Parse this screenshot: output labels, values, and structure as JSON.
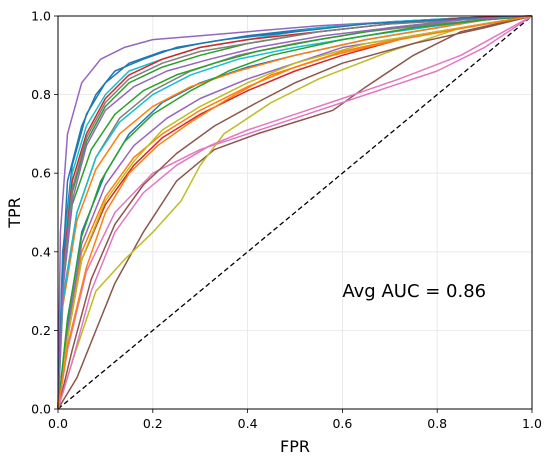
{
  "chart_data": {
    "type": "line",
    "xlabel": "FPR",
    "ylabel": "TPR",
    "xlim": [
      0,
      1
    ],
    "ylim": [
      0,
      1
    ],
    "xticks": [
      "0.0",
      "0.2",
      "0.4",
      "0.6",
      "0.8",
      "1.0"
    ],
    "yticks": [
      "0.0",
      "0.2",
      "0.4",
      "0.6",
      "0.8",
      "1.0"
    ],
    "grid": true,
    "annotation": "Avg AUC = 0.86",
    "diagonal": {
      "x": [
        0,
        1
      ],
      "y": [
        0,
        1
      ],
      "style": "dashed",
      "color": "#000000"
    },
    "series": [
      {
        "color": "#1f77b4",
        "x": [
          0,
          0.01,
          0.03,
          0.06,
          0.1,
          0.15,
          0.22,
          0.3,
          0.4,
          0.55,
          0.7,
          0.85,
          1
        ],
        "y": [
          0,
          0.4,
          0.62,
          0.75,
          0.83,
          0.88,
          0.91,
          0.93,
          0.95,
          0.97,
          0.985,
          0.995,
          1
        ]
      },
      {
        "color": "#ff7f0e",
        "x": [
          0,
          0.02,
          0.05,
          0.1,
          0.16,
          0.22,
          0.3,
          0.4,
          0.5,
          0.6,
          0.75,
          0.9,
          1
        ],
        "y": [
          0,
          0.2,
          0.4,
          0.54,
          0.64,
          0.7,
          0.76,
          0.82,
          0.87,
          0.91,
          0.95,
          0.98,
          1
        ]
      },
      {
        "color": "#2ca02c",
        "x": [
          0,
          0.01,
          0.03,
          0.06,
          0.1,
          0.15,
          0.22,
          0.3,
          0.4,
          0.55,
          0.7,
          0.85,
          1
        ],
        "y": [
          0,
          0.32,
          0.55,
          0.68,
          0.77,
          0.83,
          0.87,
          0.9,
          0.93,
          0.96,
          0.98,
          0.99,
          1
        ]
      },
      {
        "color": "#d62728",
        "x": [
          0,
          0.02,
          0.05,
          0.1,
          0.16,
          0.22,
          0.3,
          0.4,
          0.5,
          0.6,
          0.75,
          0.9,
          1
        ],
        "y": [
          0,
          0.18,
          0.38,
          0.52,
          0.62,
          0.69,
          0.75,
          0.81,
          0.86,
          0.9,
          0.95,
          0.98,
          1
        ]
      },
      {
        "color": "#9467bd",
        "x": [
          0,
          0.005,
          0.02,
          0.05,
          0.09,
          0.14,
          0.2,
          0.3,
          0.4,
          0.55,
          0.7,
          0.85,
          1
        ],
        "y": [
          0,
          0.45,
          0.7,
          0.83,
          0.89,
          0.92,
          0.94,
          0.95,
          0.96,
          0.975,
          0.985,
          0.995,
          1
        ]
      },
      {
        "color": "#8c564b",
        "x": [
          0,
          0.04,
          0.08,
          0.12,
          0.18,
          0.25,
          0.33,
          0.42,
          0.5,
          0.58,
          0.65,
          0.75,
          0.85,
          1
        ],
        "y": [
          0,
          0.08,
          0.2,
          0.32,
          0.45,
          0.58,
          0.66,
          0.7,
          0.73,
          0.76,
          0.82,
          0.9,
          0.96,
          1
        ]
      },
      {
        "color": "#e377c2",
        "x": [
          0,
          0.02,
          0.06,
          0.12,
          0.2,
          0.3,
          0.4,
          0.5,
          0.6,
          0.7,
          0.8,
          0.9,
          1
        ],
        "y": [
          0,
          0.15,
          0.35,
          0.5,
          0.6,
          0.66,
          0.7,
          0.74,
          0.78,
          0.82,
          0.86,
          0.92,
          1
        ]
      },
      {
        "color": "#7f7f7f",
        "x": [
          0,
          0.01,
          0.04,
          0.08,
          0.13,
          0.2,
          0.28,
          0.38,
          0.5,
          0.65,
          0.8,
          0.9,
          1
        ],
        "y": [
          0,
          0.28,
          0.5,
          0.64,
          0.74,
          0.81,
          0.86,
          0.9,
          0.93,
          0.96,
          0.98,
          0.99,
          1
        ]
      },
      {
        "color": "#bcbd22",
        "x": [
          0,
          0.03,
          0.08,
          0.14,
          0.2,
          0.26,
          0.3,
          0.35,
          0.45,
          0.55,
          0.7,
          0.85,
          1
        ],
        "y": [
          0,
          0.12,
          0.3,
          0.38,
          0.45,
          0.53,
          0.62,
          0.7,
          0.78,
          0.84,
          0.91,
          0.97,
          1
        ]
      },
      {
        "color": "#17becf",
        "x": [
          0,
          0.01,
          0.03,
          0.06,
          0.1,
          0.15,
          0.22,
          0.3,
          0.4,
          0.55,
          0.7,
          0.85,
          1
        ],
        "y": [
          0,
          0.38,
          0.6,
          0.72,
          0.8,
          0.86,
          0.89,
          0.92,
          0.94,
          0.97,
          0.985,
          0.995,
          1
        ]
      },
      {
        "color": "#1f77b4",
        "x": [
          0,
          0.02,
          0.05,
          0.1,
          0.15,
          0.22,
          0.3,
          0.4,
          0.5,
          0.65,
          0.8,
          0.9,
          1
        ],
        "y": [
          0,
          0.22,
          0.45,
          0.6,
          0.7,
          0.78,
          0.83,
          0.87,
          0.9,
          0.94,
          0.97,
          0.99,
          1
        ]
      },
      {
        "color": "#ff7f0e",
        "x": [
          0,
          0.01,
          0.04,
          0.08,
          0.13,
          0.2,
          0.28,
          0.38,
          0.5,
          0.65,
          0.8,
          0.9,
          1
        ],
        "y": [
          0,
          0.26,
          0.48,
          0.61,
          0.7,
          0.77,
          0.82,
          0.86,
          0.9,
          0.94,
          0.97,
          0.99,
          1
        ]
      },
      {
        "color": "#2ca02c",
        "x": [
          0,
          0.01,
          0.03,
          0.07,
          0.12,
          0.18,
          0.25,
          0.33,
          0.42,
          0.55,
          0.7,
          0.85,
          1
        ],
        "y": [
          0,
          0.3,
          0.52,
          0.66,
          0.75,
          0.81,
          0.85,
          0.88,
          0.91,
          0.94,
          0.97,
          0.99,
          1
        ]
      },
      {
        "color": "#d62728",
        "x": [
          0,
          0.01,
          0.03,
          0.06,
          0.1,
          0.15,
          0.22,
          0.3,
          0.4,
          0.55,
          0.7,
          0.85,
          1
        ],
        "y": [
          0,
          0.35,
          0.58,
          0.7,
          0.79,
          0.85,
          0.89,
          0.92,
          0.94,
          0.96,
          0.98,
          0.995,
          1
        ]
      },
      {
        "color": "#9467bd",
        "x": [
          0,
          0.02,
          0.05,
          0.1,
          0.16,
          0.23,
          0.3,
          0.4,
          0.5,
          0.6,
          0.75,
          0.9,
          1
        ],
        "y": [
          0,
          0.2,
          0.42,
          0.57,
          0.67,
          0.74,
          0.79,
          0.84,
          0.88,
          0.92,
          0.95,
          0.98,
          1
        ]
      },
      {
        "color": "#8c564b",
        "x": [
          0,
          0.03,
          0.07,
          0.12,
          0.18,
          0.25,
          0.33,
          0.42,
          0.5,
          0.6,
          0.75,
          0.9,
          1
        ],
        "y": [
          0,
          0.15,
          0.33,
          0.47,
          0.57,
          0.65,
          0.72,
          0.78,
          0.83,
          0.88,
          0.93,
          0.97,
          1
        ]
      },
      {
        "color": "#e377c2",
        "x": [
          0,
          0.03,
          0.07,
          0.12,
          0.18,
          0.25,
          0.32,
          0.4,
          0.5,
          0.6,
          0.72,
          0.85,
          1
        ],
        "y": [
          0,
          0.12,
          0.3,
          0.45,
          0.55,
          0.62,
          0.67,
          0.71,
          0.75,
          0.79,
          0.84,
          0.9,
          1
        ]
      },
      {
        "color": "#7f7f7f",
        "x": [
          0,
          0.01,
          0.03,
          0.06,
          0.1,
          0.15,
          0.22,
          0.3,
          0.4,
          0.55,
          0.7,
          0.85,
          1
        ],
        "y": [
          0,
          0.33,
          0.56,
          0.69,
          0.78,
          0.84,
          0.88,
          0.91,
          0.93,
          0.96,
          0.98,
          0.99,
          1
        ]
      },
      {
        "color": "#bcbd22",
        "x": [
          0,
          0.02,
          0.05,
          0.1,
          0.16,
          0.22,
          0.3,
          0.4,
          0.5,
          0.65,
          0.8,
          0.9,
          1
        ],
        "y": [
          0,
          0.18,
          0.38,
          0.53,
          0.63,
          0.71,
          0.77,
          0.83,
          0.88,
          0.93,
          0.96,
          0.98,
          1
        ]
      },
      {
        "color": "#17becf",
        "x": [
          0,
          0.01,
          0.04,
          0.08,
          0.13,
          0.2,
          0.28,
          0.38,
          0.5,
          0.65,
          0.8,
          0.9,
          1
        ],
        "y": [
          0,
          0.27,
          0.5,
          0.64,
          0.73,
          0.8,
          0.85,
          0.89,
          0.92,
          0.95,
          0.975,
          0.99,
          1
        ]
      },
      {
        "color": "#1f77b4",
        "x": [
          0,
          0.01,
          0.02,
          0.05,
          0.08,
          0.12,
          0.18,
          0.25,
          0.35,
          0.5,
          0.65,
          0.8,
          1
        ],
        "y": [
          0,
          0.36,
          0.58,
          0.72,
          0.8,
          0.86,
          0.89,
          0.92,
          0.94,
          0.96,
          0.98,
          0.99,
          1
        ]
      },
      {
        "color": "#2ca02c",
        "x": [
          0,
          0.02,
          0.05,
          0.09,
          0.14,
          0.2,
          0.28,
          0.36,
          0.45,
          0.6,
          0.75,
          0.9,
          1
        ],
        "y": [
          0,
          0.23,
          0.44,
          0.58,
          0.68,
          0.75,
          0.81,
          0.86,
          0.9,
          0.94,
          0.97,
          0.99,
          1
        ]
      },
      {
        "color": "#9467bd",
        "x": [
          0,
          0.01,
          0.03,
          0.06,
          0.1,
          0.16,
          0.23,
          0.32,
          0.42,
          0.56,
          0.7,
          0.85,
          1
        ],
        "y": [
          0,
          0.3,
          0.53,
          0.67,
          0.76,
          0.82,
          0.86,
          0.89,
          0.92,
          0.95,
          0.97,
          0.99,
          1
        ]
      },
      {
        "color": "#ff7f0e",
        "x": [
          0,
          0.02,
          0.06,
          0.1,
          0.15,
          0.21,
          0.28,
          0.36,
          0.45,
          0.58,
          0.72,
          0.86,
          1
        ],
        "y": [
          0,
          0.16,
          0.36,
          0.5,
          0.6,
          0.67,
          0.73,
          0.79,
          0.85,
          0.9,
          0.94,
          0.97,
          1
        ]
      }
    ]
  }
}
